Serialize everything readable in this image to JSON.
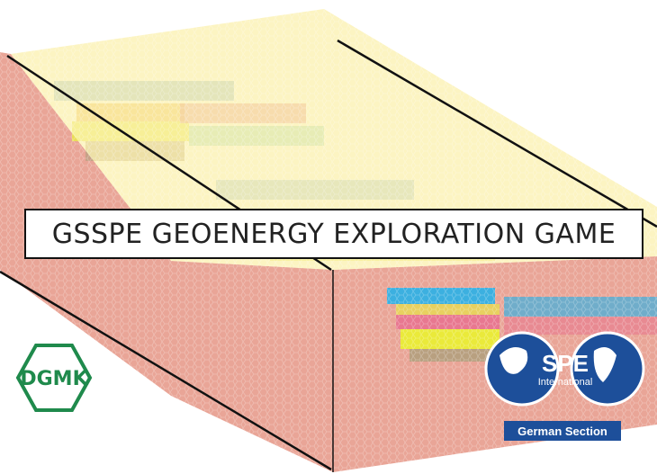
{
  "title": "GSSPE GEOENERGY EXPLORATION GAME",
  "logos": {
    "left": "DGMK",
    "right": {
      "name": "SPE",
      "sub": "International",
      "section": "German Section"
    }
  }
}
